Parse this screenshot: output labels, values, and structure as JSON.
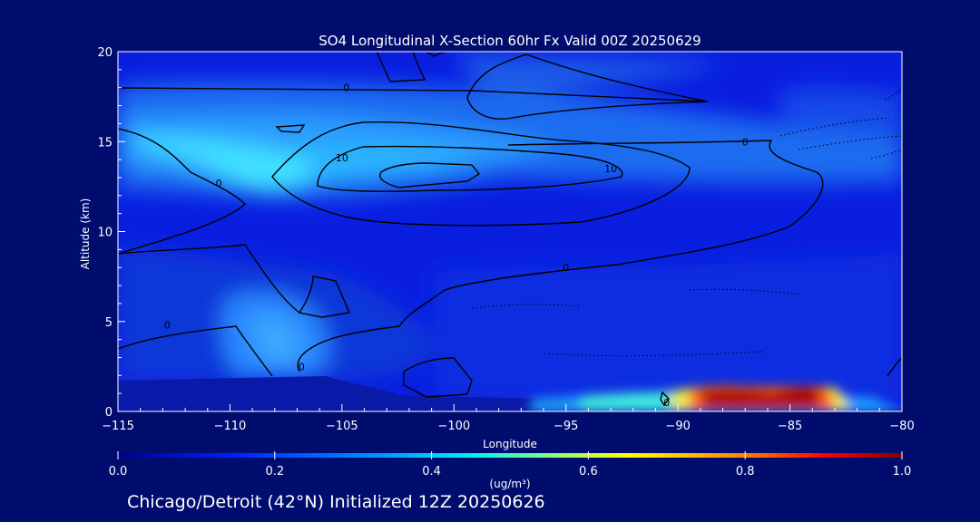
{
  "chart_data": {
    "type": "heatmap",
    "title": "SO4 Longitudinal X-Section 60hr  Fx Valid 00Z 20250629",
    "xlabel": "Longitude",
    "ylabel": "Altitude (km)",
    "xlim": [
      -115,
      -80
    ],
    "ylim": [
      0,
      20
    ],
    "x_ticks": [
      -115,
      -110,
      -105,
      -100,
      -95,
      -90,
      -85,
      -80
    ],
    "x_tick_labels": [
      "−115",
      "−110",
      "−105",
      "−100",
      "−95",
      "−90",
      "−85",
      "−80"
    ],
    "y_ticks": [
      0,
      5,
      10,
      15,
      20
    ],
    "y_tick_labels": [
      "0",
      "5",
      "10",
      "15",
      "20"
    ],
    "colorbar": {
      "label": "(ug/m³)",
      "ticks": [
        0.0,
        0.2,
        0.4,
        0.6,
        0.8,
        1.0
      ],
      "tick_labels": [
        "0.0",
        "0.2",
        "0.4",
        "0.6",
        "0.8",
        "1.0"
      ],
      "range": [
        0.0,
        1.0
      ]
    },
    "concentration_regions": [
      {
        "lon": [
          -115,
          -80
        ],
        "alt": [
          0,
          20
        ],
        "value": 0.08
      },
      {
        "lon": [
          -115,
          -96
        ],
        "alt": [
          12,
          16
        ],
        "value": 0.35
      },
      {
        "lon": [
          -108,
          -102
        ],
        "alt": [
          12,
          15
        ],
        "value": 0.42
      },
      {
        "lon": [
          -109,
          -104
        ],
        "alt": [
          2,
          6
        ],
        "value": 0.22
      },
      {
        "lon": [
          -115,
          -96
        ],
        "alt": [
          0,
          9
        ],
        "value": 0.16
      },
      {
        "lon": [
          -96,
          -91
        ],
        "alt": [
          0.3,
          0.8
        ],
        "value": 0.35
      },
      {
        "lon": [
          -91,
          -89.5
        ],
        "alt": [
          0.3,
          1.3
        ],
        "value": 0.6
      },
      {
        "lon": [
          -89,
          -84
        ],
        "alt": [
          0.3,
          1.3
        ],
        "value": 1.0
      },
      {
        "lon": [
          -84,
          -83
        ],
        "alt": [
          0.3,
          1.3
        ],
        "value": 0.7
      }
    ],
    "contour_labels": [
      {
        "text": "0",
        "lon": -104.8,
        "alt": 18.0
      },
      {
        "text": "0",
        "lon": -87.0,
        "alt": 15.0
      },
      {
        "text": "0",
        "lon": -110.5,
        "alt": 12.7
      },
      {
        "text": "10",
        "lon": -105.0,
        "alt": 14.1
      },
      {
        "text": "10",
        "lon": -93.0,
        "alt": 13.5
      },
      {
        "text": "0",
        "lon": -95.0,
        "alt": 8.0
      },
      {
        "text": "0",
        "lon": -112.8,
        "alt": 4.8
      },
      {
        "text": "0",
        "lon": -106.8,
        "alt": 2.5
      },
      {
        "text": "0",
        "lon": -90.5,
        "alt": 0.5
      }
    ]
  },
  "caption": "Chicago/Detroit (42°N) Initialized 12Z 20250626",
  "colors": {
    "background": "#000c6e",
    "contour": "#000000"
  }
}
